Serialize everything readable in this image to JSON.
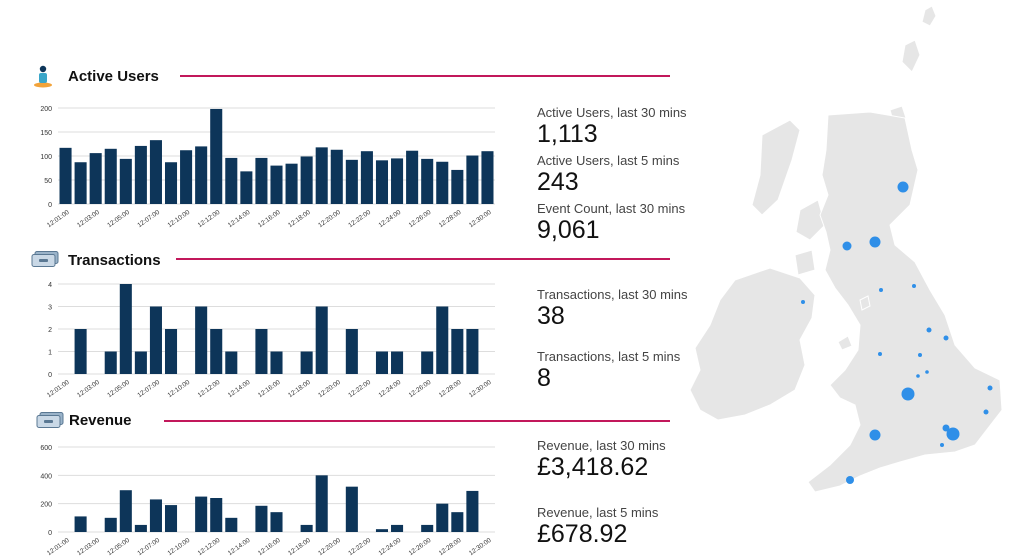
{
  "colors": {
    "bar": "#0d3559",
    "accent": "#c2185b",
    "dot": "#2f8fe8",
    "land": "#e6e6e6",
    "grid": "#dddddd"
  },
  "sections": {
    "active_users": {
      "title": "Active Users",
      "icon": "person-icon"
    },
    "transactions": {
      "title": "Transactions",
      "icon": "cash-icon"
    },
    "revenue": {
      "title": "Revenue",
      "icon": "cash-icon"
    }
  },
  "metrics": {
    "active_users_30": {
      "label": "Active Users, last 30 mins",
      "value": "1,113"
    },
    "active_users_5": {
      "label": "Active Users, last 5 mins",
      "value": "243"
    },
    "event_count_30": {
      "label": "Event Count, last 30 mins",
      "value": "9,061"
    },
    "transactions_30": {
      "label": "Transactions, last 30 mins",
      "value": "38"
    },
    "transactions_5": {
      "label": "Transactions, last 5 mins",
      "value": "8"
    },
    "revenue_30": {
      "label": "Revenue, last 30 mins",
      "value": "£3,418.62"
    },
    "revenue_5": {
      "label": "Revenue, last 5 mins",
      "value": "£678.92"
    }
  },
  "chart_data": [
    {
      "id": "active_users",
      "type": "bar",
      "title": "Active Users",
      "ylim": [
        0,
        200
      ],
      "yticks": [
        0,
        50,
        100,
        150,
        200
      ],
      "xticks": [
        "12:01:00",
        "12:03:00",
        "12:05:00",
        "12:07:00",
        "12:10:00",
        "12:12:00",
        "12:14:00",
        "12:16:00",
        "12:18:00",
        "12:20:00",
        "12:22:00",
        "12:24:00",
        "12:26:00",
        "12:28:00",
        "12:30:00"
      ],
      "values": [
        117,
        87,
        106,
        115,
        94,
        121,
        133,
        87,
        112,
        120,
        198,
        96,
        68,
        96,
        80,
        84,
        99,
        118,
        113,
        92,
        110,
        91,
        95,
        111,
        94,
        88,
        71,
        101,
        110
      ]
    },
    {
      "id": "transactions",
      "type": "bar",
      "title": "Transactions",
      "ylim": [
        0,
        4
      ],
      "yticks": [
        0,
        1,
        2,
        3,
        4
      ],
      "xticks": [
        "12:01:00",
        "12:03:00",
        "12:05:00",
        "12:07:00",
        "12:10:00",
        "12:12:00",
        "12:14:00",
        "12:16:00",
        "12:18:00",
        "12:20:00",
        "12:22:00",
        "12:24:00",
        "12:26:00",
        "12:28:00",
        "12:30:00"
      ],
      "values": [
        0,
        2,
        0,
        1,
        4,
        1,
        3,
        2,
        0,
        3,
        2,
        1,
        0,
        2,
        1,
        0,
        1,
        3,
        0,
        2,
        0,
        1,
        1,
        0,
        1,
        3,
        2,
        2,
        0
      ]
    },
    {
      "id": "revenue",
      "type": "bar",
      "title": "Revenue",
      "ylim": [
        0,
        600
      ],
      "yticks": [
        0,
        200,
        400,
        600
      ],
      "xticks": [
        "12:01:00",
        "12:03:00",
        "12:05:00",
        "12:07:00",
        "12:10:00",
        "12:12:00",
        "12:14:00",
        "12:16:00",
        "12:18:00",
        "12:20:00",
        "12:22:00",
        "12:24:00",
        "12:26:00",
        "12:28:00",
        "12:30:00"
      ],
      "values": [
        0,
        110,
        0,
        100,
        295,
        50,
        230,
        190,
        0,
        250,
        240,
        100,
        0,
        185,
        140,
        0,
        50,
        400,
        0,
        320,
        0,
        20,
        50,
        0,
        50,
        200,
        140,
        290,
        0
      ]
    }
  ]
}
